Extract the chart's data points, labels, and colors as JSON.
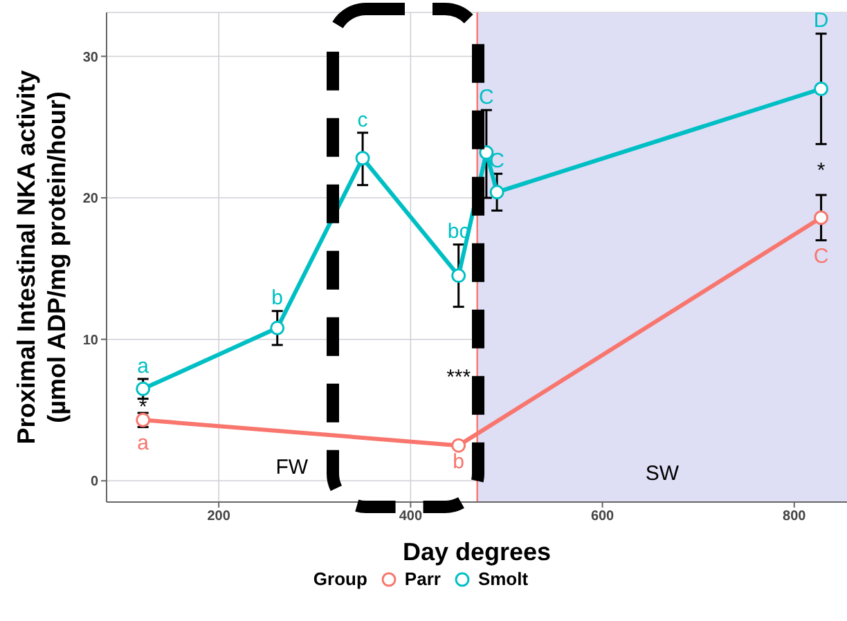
{
  "chart_data": {
    "type": "line",
    "xlabel": "Day degrees",
    "ylabel": "Proximal Intestinal NKA activity\n(µmol ADP/mg protein/hour)",
    "legend_title": "Group",
    "xlim": [
      83,
      855
    ],
    "xticks": [
      200,
      400,
      600,
      800
    ],
    "ylim": [
      -1.5,
      33.1
    ],
    "yticks": [
      0,
      10,
      20,
      30
    ],
    "grid": true,
    "legend": "bottom",
    "marker": "circle",
    "line_style": "solid",
    "series": [
      {
        "name": "Parr",
        "color": "#f8766d",
        "x": [
          121,
          450,
          828
        ],
        "values": [
          4.3,
          2.5,
          18.6
        ],
        "errors": [
          [
            3.8,
            4.8
          ],
          null,
          [
            17.0,
            20.2
          ]
        ]
      },
      {
        "name": "Smolt",
        "color": "#00bfc4",
        "x": [
          121,
          261,
          350,
          450,
          479,
          490,
          828
        ],
        "values": [
          6.5,
          10.8,
          22.8,
          14.5,
          23.2,
          20.4,
          27.7
        ],
        "errors": [
          [
            5.8,
            7.2
          ],
          [
            9.6,
            12.0
          ],
          [
            20.9,
            24.6
          ],
          [
            12.3,
            16.7
          ],
          [
            20.0,
            26.2
          ],
          [
            19.1,
            21.7
          ],
          [
            23.8,
            31.6
          ]
        ]
      }
    ],
    "ref_lines": [
      {
        "axis": "x",
        "value": 469.5,
        "color": "#f8766d"
      }
    ],
    "bands": [
      {
        "axis": "x",
        "from": 469.5,
        "to": 855,
        "color": "#dedef5",
        "label": "SW"
      }
    ],
    "annotations": [
      {
        "text": "a",
        "x": 121,
        "y": 6.5
      },
      {
        "text": "b",
        "x": 261,
        "y": 10.8
      },
      {
        "text": "c",
        "x": 350,
        "y": 22.8
      },
      {
        "text": "bc",
        "x": 450,
        "y": 14.5
      },
      {
        "text": "C",
        "x": 479,
        "y": 23.2
      },
      {
        "text": "C",
        "x": 490,
        "y": 20.4
      },
      {
        "text": "D",
        "x": 828,
        "y": 27.7
      },
      {
        "text": "a",
        "x": 121,
        "y": 4.3
      },
      {
        "text": "b",
        "x": 450,
        "y": 2.5
      },
      {
        "text": "C",
        "x": 828,
        "y": 18.6
      },
      {
        "text": "*",
        "x": 121,
        "y": 4.3
      },
      {
        "text": "***",
        "x": 450,
        "y": 2.5
      },
      {
        "text": "*",
        "x": 828,
        "y": 18.6
      },
      "FW"
    ]
  }
}
